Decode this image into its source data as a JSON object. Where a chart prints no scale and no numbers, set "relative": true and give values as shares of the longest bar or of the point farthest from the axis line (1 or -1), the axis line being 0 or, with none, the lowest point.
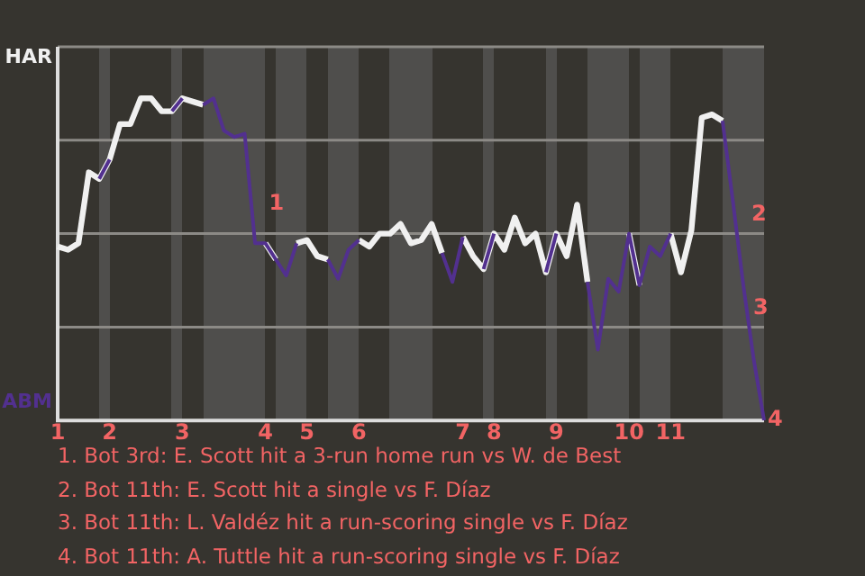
{
  "chart_data": {
    "type": "line",
    "relative": true,
    "grid": "y",
    "legend": "left",
    "marker": "none",
    "line_style": "solid",
    "categories": [
      "1",
      null,
      null,
      null,
      null,
      "2",
      null,
      null,
      null,
      null,
      null,
      null,
      "3",
      null,
      null,
      null,
      null,
      null,
      null,
      null,
      "4",
      null,
      null,
      null,
      "5",
      null,
      null,
      null,
      null,
      "6",
      null,
      null,
      null,
      null,
      null,
      null,
      null,
      null,
      null,
      "7",
      null,
      null,
      "8",
      null,
      null,
      null,
      null,
      null,
      "9",
      null,
      null,
      null,
      null,
      null,
      null,
      "10",
      null,
      null,
      null,
      "11",
      null,
      null,
      null,
      null,
      null,
      null,
      null,
      null,
      null
    ],
    "series": [
      {
        "name": "HAR",
        "color": "#f0f0f0",
        "values": [
          0.54,
          0.53,
          0.55,
          0.77,
          0.75,
          0.81,
          0.92,
          0.92,
          1,
          1,
          0.96,
          0.96,
          1,
          0.99,
          0.98,
          null,
          null,
          null,
          null,
          null,
          0.55,
          0.5,
          null,
          0.55,
          0.56,
          0.51,
          0.5,
          null,
          null,
          0.56,
          0.54,
          0.58,
          0.58,
          0.61,
          0.55,
          0.56,
          0.61,
          0.52,
          null,
          0.57,
          0.51,
          0.47,
          0.58,
          0.53,
          0.63,
          0.55,
          0.58,
          0.46,
          0.58,
          0.51,
          0.67,
          0.43,
          null,
          null,
          null,
          0.58,
          0.42,
          null,
          null,
          0.58,
          0.46,
          0.59,
          0.94,
          0.95,
          0.93,
          null,
          null,
          null,
          null
        ]
      },
      {
        "name": "ABM",
        "color": "#52308f",
        "values": [
          null,
          null,
          null,
          null,
          0.75,
          0.81,
          null,
          null,
          null,
          null,
          null,
          0.96,
          1,
          null,
          0.98,
          1,
          0.9,
          0.88,
          0.89,
          0.55,
          0.55,
          0.5,
          0.45,
          0.55,
          null,
          null,
          0.5,
          0.44,
          0.53,
          0.56,
          null,
          null,
          null,
          null,
          null,
          null,
          null,
          0.52,
          0.43,
          0.57,
          null,
          0.47,
          0.58,
          null,
          null,
          null,
          null,
          0.46,
          0.58,
          null,
          null,
          0.43,
          0.22,
          0.44,
          0.4,
          0.58,
          0.42,
          0.54,
          0.51,
          0.58,
          null,
          null,
          null,
          null,
          0.93,
          0.68,
          0.42,
          0.19,
          0
        ]
      }
    ],
    "annotations": [
      {
        "text": "1",
        "x": "4",
        "y": 0.55
      },
      "2",
      "3",
      "4",
      "1. Bot 3rd: E. Scott hit a 3-run home run vs W. de Best",
      "2. Bot 11th: E. Scott hit a single vs F. Díaz",
      "3. Bot 11th: L. Valdéz hit a run-scoring single vs F. Díaz",
      "4. Bot 11th: A. Tuttle hit a run-scoring single vs F. Díaz"
    ]
  }
}
